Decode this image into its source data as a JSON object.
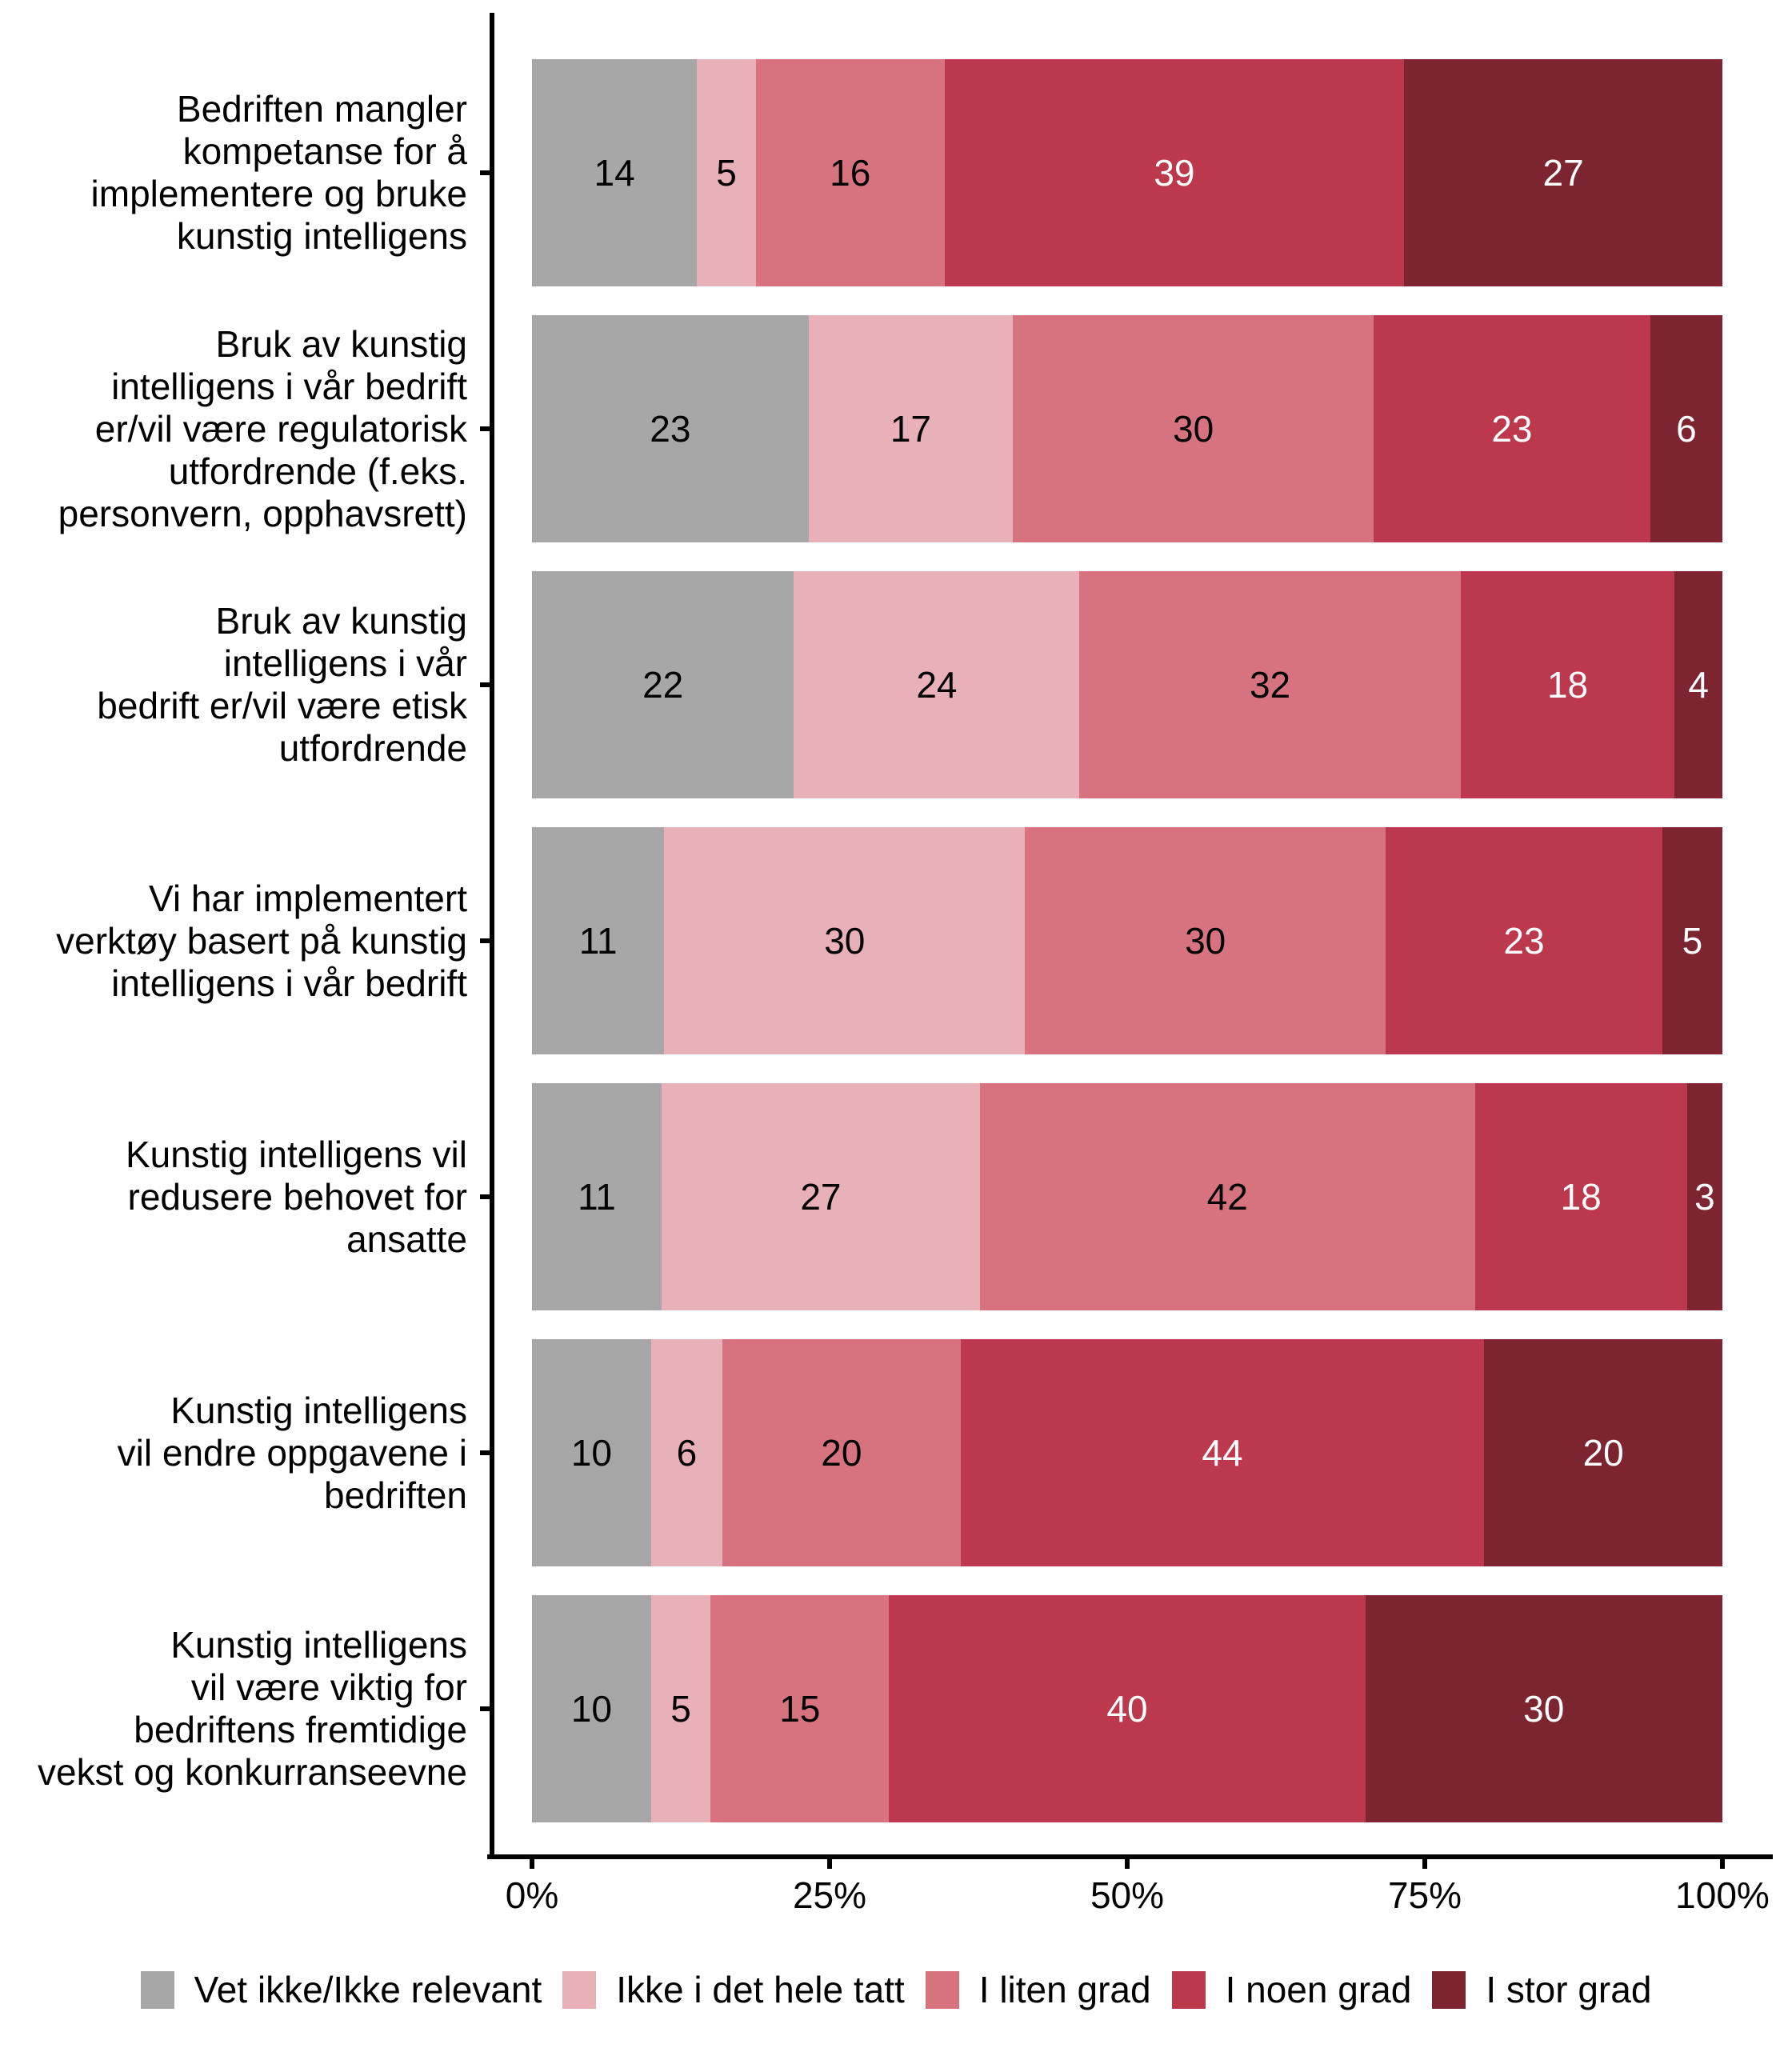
{
  "chart_data": {
    "type": "bar",
    "orientation": "horizontal",
    "stacked": true,
    "normalized_to_100": true,
    "value_unit": "percent",
    "background": "#FFFFFF",
    "axis_color": "#000000",
    "grid": false,
    "legend_position": "bottom",
    "xlim": [
      0,
      100
    ],
    "x_ticks": [
      {
        "label": "0%",
        "value": 0
      },
      {
        "label": "25%",
        "value": 25
      },
      {
        "label": "50%",
        "value": 50
      },
      {
        "label": "75%",
        "value": 75
      },
      {
        "label": "100%",
        "value": 100
      }
    ],
    "categories": [
      "Bedriften mangler\nkompetanse for å\nimplementere og bruke\nkunstig intelligens",
      "Bruk av kunstig\nintelligens i vår bedrift\ner/vil være regulatorisk\nutfordrende (f.eks.\npersonvern, opphavsrett)",
      "Bruk av kunstig\nintelligens i vår\nbedrift er/vil være etisk\nutfordrende",
      "Vi har implementert\nverktøy basert på kunstig\nintelligens i vår bedrift",
      "Kunstig intelligens vil\nredusere behovet for\nansatte",
      "Kunstig intelligens\nvil endre oppgavene i\nbedriften",
      "Kunstig intelligens\nvil være viktig for\nbedriftens fremtidige\nvekst og konkurranseevne"
    ],
    "series": [
      {
        "name": "Vet ikke/Ikke relevant",
        "color": "#A7A7A7",
        "text_color": "#000000",
        "values": [
          14,
          23,
          22,
          11,
          11,
          10,
          10
        ]
      },
      {
        "name": "Ikke i det hele tatt",
        "color": "#E8B0B9",
        "text_color": "#000000",
        "values": [
          5,
          17,
          24,
          30,
          27,
          6,
          5
        ]
      },
      {
        "name": "I liten grad",
        "color": "#D6737F",
        "text_color": "#000000",
        "values": [
          16,
          30,
          32,
          30,
          42,
          20,
          15
        ]
      },
      {
        "name": "I noen grad",
        "color": "#BC394D",
        "text_color": "#FFFFFF",
        "values": [
          39,
          23,
          18,
          23,
          18,
          44,
          40
        ]
      },
      {
        "name": "I stor grad",
        "color": "#7C2430",
        "text_color": "#FFFFFF",
        "values": [
          27,
          6,
          4,
          5,
          3,
          20,
          30
        ]
      }
    ]
  }
}
